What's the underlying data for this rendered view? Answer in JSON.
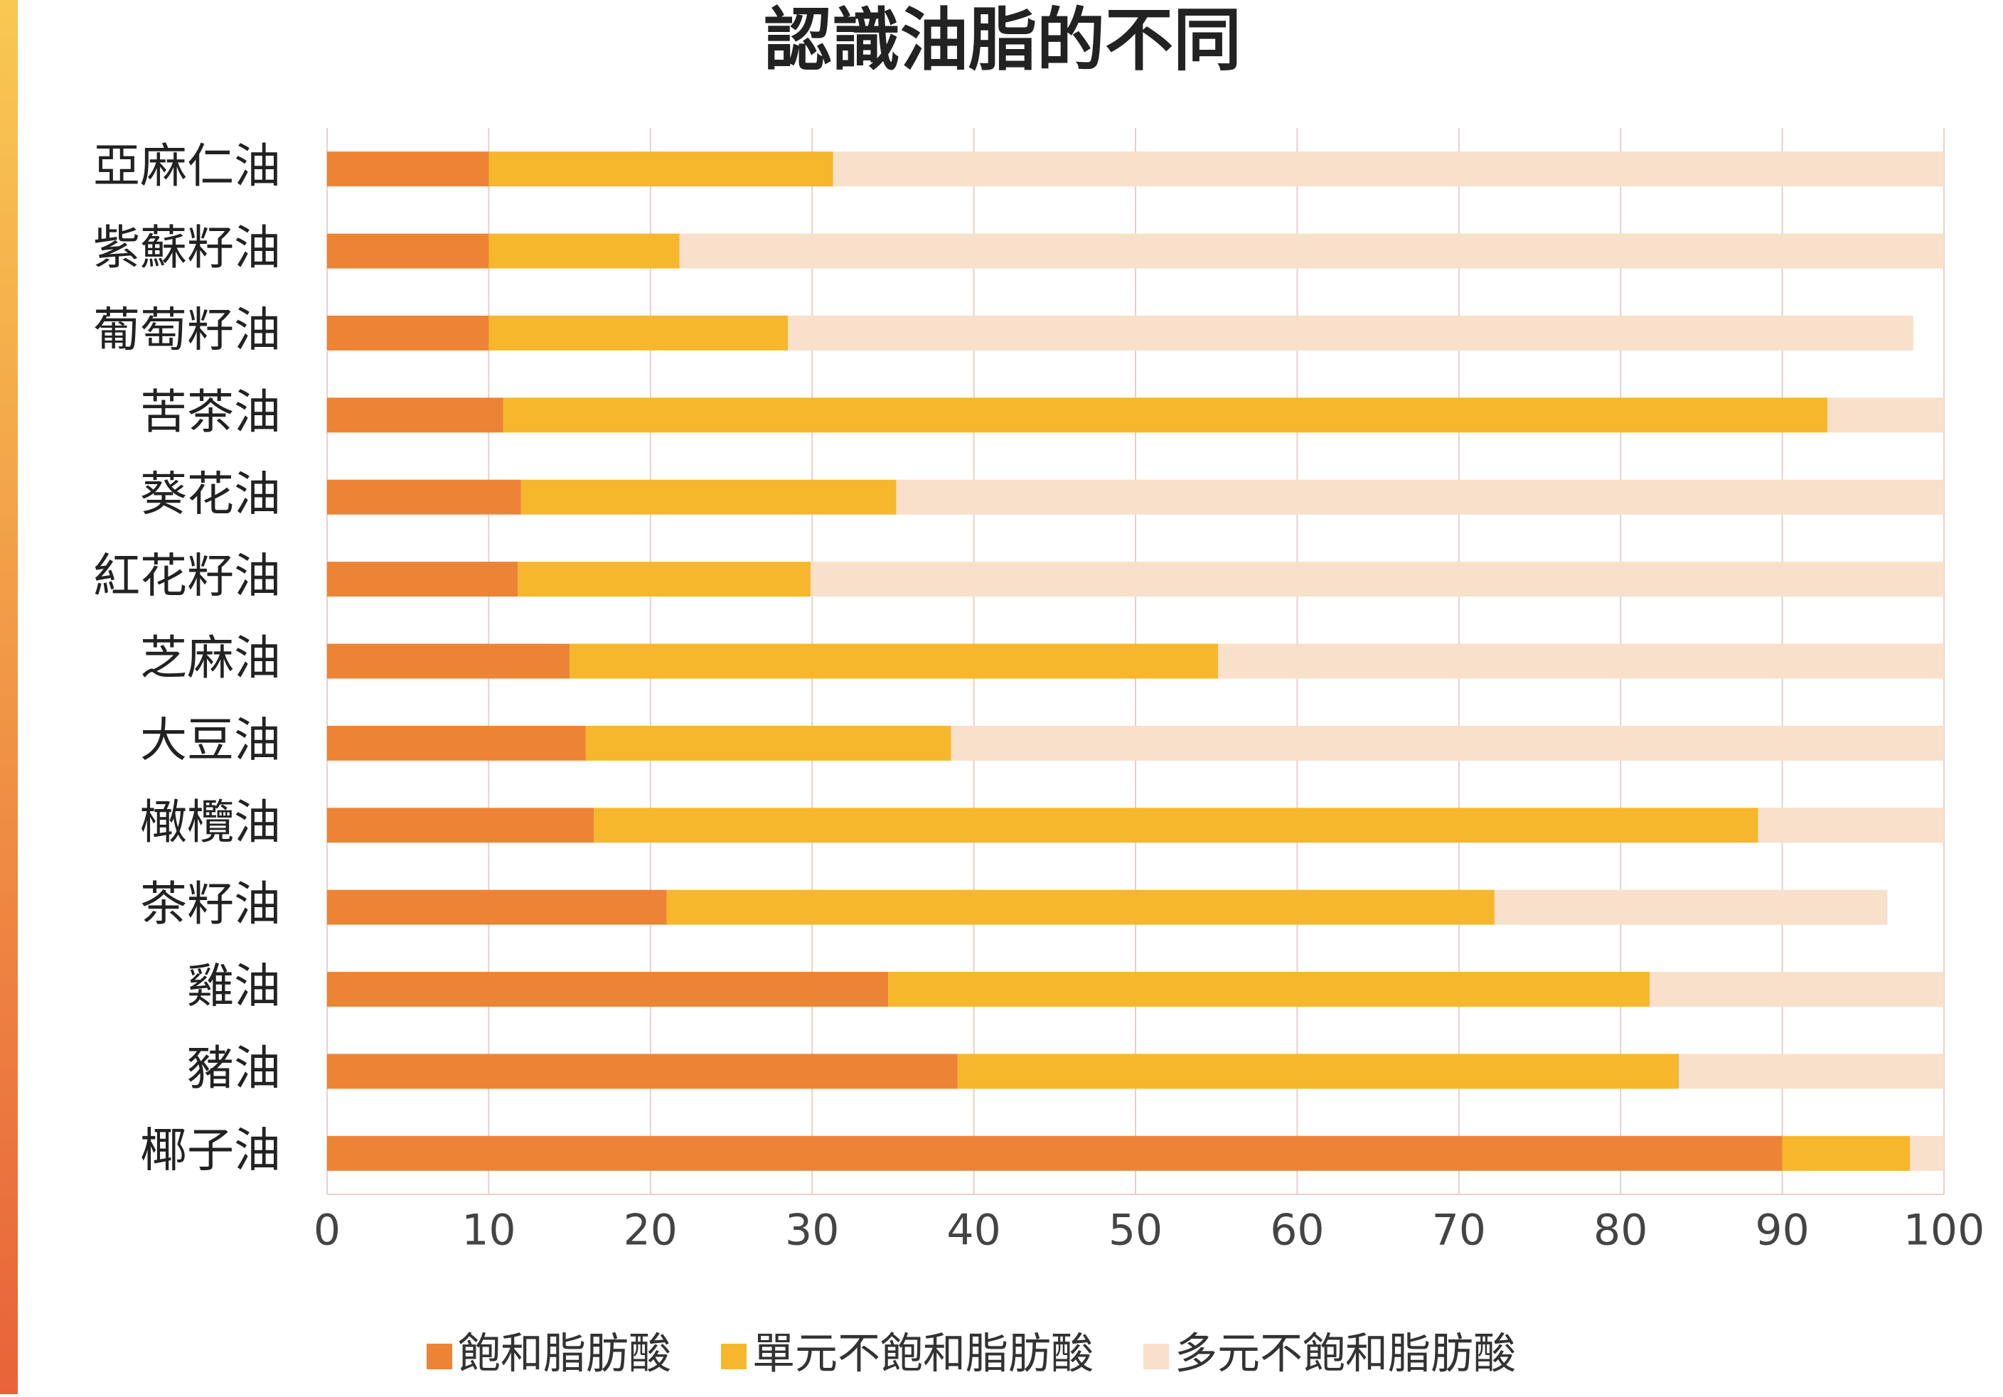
{
  "chart_data": {
    "type": "bar",
    "orientation": "horizontal",
    "stacked": true,
    "title": "認識油脂的不同",
    "categories": [
      "亞麻仁油",
      "紫蘇籽油",
      "葡萄籽油",
      "苦茶油",
      "葵花油",
      "紅花籽油",
      "芝麻油",
      "大豆油",
      "橄欖油",
      "茶籽油",
      "雞油",
      "豬油",
      "椰子油"
    ],
    "series": [
      {
        "name": "飽和脂肪酸",
        "color": "#ED8435",
        "values": [
          10,
          10,
          10,
          10.9,
          12,
          11.8,
          15,
          16,
          16.5,
          21,
          34.7,
          39,
          90
        ]
      },
      {
        "name": "單元不飽和脂肪酸",
        "color": "#F6B72C",
        "values": [
          21.3,
          11.8,
          18.5,
          81.9,
          23.2,
          18.1,
          40.1,
          22.6,
          72,
          51.2,
          47.1,
          44.6,
          7.9
        ]
      },
      {
        "name": "多元不飽和脂肪酸",
        "color": "#F8E0CB",
        "values": [
          68.7,
          78.2,
          69.6,
          7.2,
          64.8,
          70.1,
          44.9,
          61.4,
          11.5,
          24.3,
          18.2,
          16.4,
          2.1
        ]
      }
    ],
    "xlim": [
      0,
      100
    ],
    "xticks": [
      0,
      10,
      20,
      30,
      40,
      50,
      60,
      70,
      80,
      90,
      100
    ],
    "grid": true,
    "legend": "bottom"
  }
}
